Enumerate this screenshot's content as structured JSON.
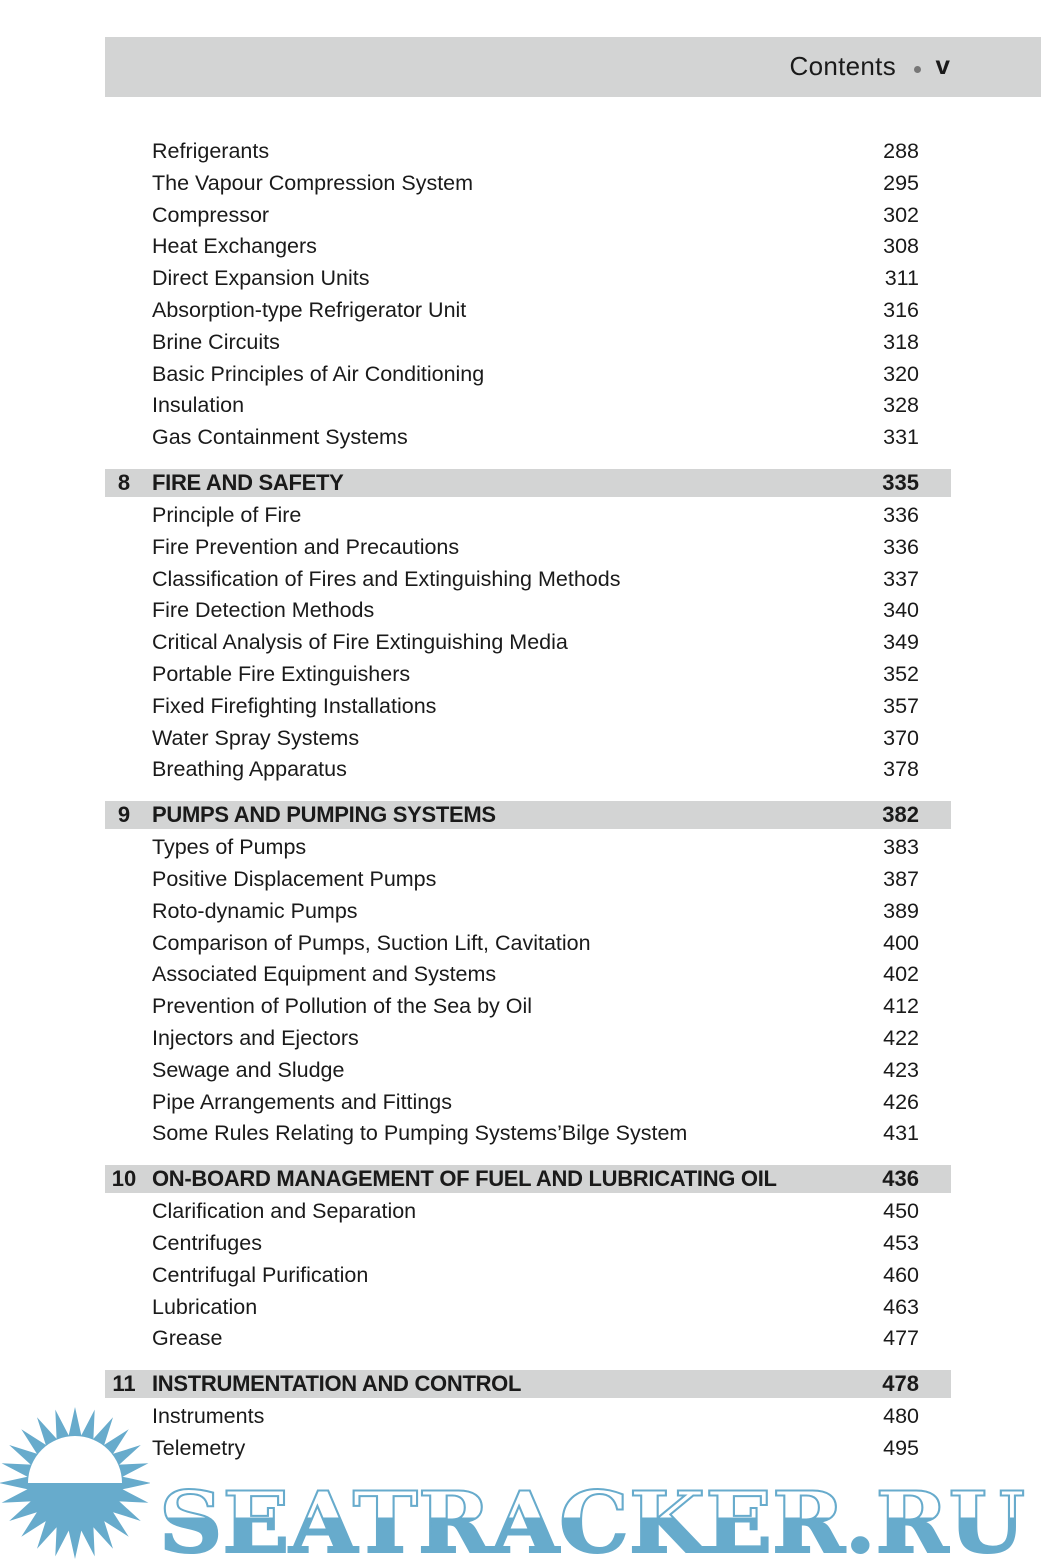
{
  "header": {
    "title": "Contents",
    "page": "v"
  },
  "toc": [
    {
      "type": "item",
      "title": "Refrigerants",
      "page": "288"
    },
    {
      "type": "item",
      "title": "The Vapour Compression System",
      "page": "295"
    },
    {
      "type": "item",
      "title": "Compressor",
      "page": "302"
    },
    {
      "type": "item",
      "title": "Heat Exchangers",
      "page": "308"
    },
    {
      "type": "item",
      "title": "Direct Expansion Units",
      "page": "311"
    },
    {
      "type": "item",
      "title": "Absorption-type Refrigerator Unit",
      "page": "316"
    },
    {
      "type": "item",
      "title": "Brine Circuits",
      "page": "318"
    },
    {
      "type": "item",
      "title": "Basic Principles of Air Conditioning",
      "page": "320"
    },
    {
      "type": "item",
      "title": "Insulation",
      "page": "328"
    },
    {
      "type": "item",
      "title": "Gas Containment Systems",
      "page": "331"
    },
    {
      "type": "chapter",
      "number": "8",
      "title": "FIRE AND SAFETY",
      "page": "335"
    },
    {
      "type": "item",
      "title": "Principle of Fire",
      "page": "336"
    },
    {
      "type": "item",
      "title": "Fire Prevention and Precautions",
      "page": "336"
    },
    {
      "type": "item",
      "title": "Classification of Fires and Extinguishing Methods",
      "page": "337"
    },
    {
      "type": "item",
      "title": "Fire Detection Methods",
      "page": "340"
    },
    {
      "type": "item",
      "title": "Critical Analysis of Fire Extinguishing Media",
      "page": "349"
    },
    {
      "type": "item",
      "title": "Portable Fire Extinguishers",
      "page": "352"
    },
    {
      "type": "item",
      "title": "Fixed Firefighting Installations",
      "page": "357"
    },
    {
      "type": "item",
      "title": "Water Spray Systems",
      "page": "370"
    },
    {
      "type": "item",
      "title": "Breathing Apparatus",
      "page": "378"
    },
    {
      "type": "chapter",
      "number": "9",
      "title": "PUMPS AND PUMPING SYSTEMS",
      "page": "382"
    },
    {
      "type": "item",
      "title": "Types of Pumps",
      "page": "383"
    },
    {
      "type": "item",
      "title": "Positive Displacement Pumps",
      "page": "387"
    },
    {
      "type": "item",
      "title": "Roto-dynamic Pumps",
      "page": "389"
    },
    {
      "type": "item",
      "title": "Comparison of Pumps, Suction Lift, Cavitation",
      "page": "400"
    },
    {
      "type": "item",
      "title": "Associated Equipment and Systems",
      "page": "402"
    },
    {
      "type": "item",
      "title": "Prevention of Pollution of the Sea by Oil",
      "page": "412"
    },
    {
      "type": "item",
      "title": "Injectors and Ejectors",
      "page": "422"
    },
    {
      "type": "item",
      "title": "Sewage and Sludge",
      "page": "423"
    },
    {
      "type": "item",
      "title": "Pipe Arrangements and Fittings",
      "page": "426"
    },
    {
      "type": "item",
      "title": "Some Rules Relating to Pumping Systems’Bilge System",
      "page": "431"
    },
    {
      "type": "chapter",
      "number": "10",
      "title": "ON-BOARD MANAGEMENT OF FUEL AND LUBRICATING OIL",
      "page": "436"
    },
    {
      "type": "item",
      "title": "Clarification and Separation",
      "page": "450"
    },
    {
      "type": "item",
      "title": "Centrifuges",
      "page": "453"
    },
    {
      "type": "item",
      "title": "Centrifugal Purification",
      "page": "460"
    },
    {
      "type": "item",
      "title": "Lubrication",
      "page": "463"
    },
    {
      "type": "item",
      "title": "Grease",
      "page": "477"
    },
    {
      "type": "chapter",
      "number": "11",
      "title": "INSTRUMENTATION AND CONTROL",
      "page": "478"
    },
    {
      "type": "item",
      "title": "Instruments",
      "page": "480"
    },
    {
      "type": "item",
      "title": "Telemetry",
      "page": "495"
    }
  ],
  "watermark": {
    "text": "SEATRACKER.RU",
    "color": "#67abcc"
  },
  "colors": {
    "band": "#d3d4d4",
    "text": "#1a1a1a"
  }
}
